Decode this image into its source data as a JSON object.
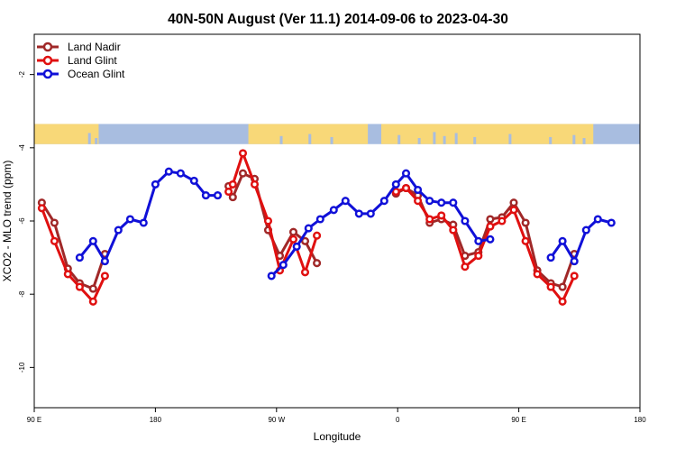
{
  "chart_data": {
    "type": "line",
    "title": "40N-50N August (Ver 11.1)   2014-09-06 to 2023-04-30",
    "xlabel": "Longitude",
    "ylabel": "XCO2 - MLO trend (ppm)",
    "xlim": [
      90,
      450
    ],
    "ylim": [
      -11.1,
      -0.9
    ],
    "x_ticks": [
      {
        "value": 90,
        "label": "90 E"
      },
      {
        "value": 162,
        "label": "180"
      },
      {
        "value": 234,
        "label": "90 W"
      },
      {
        "value": 306,
        "label": "0"
      },
      {
        "value": 378,
        "label": "90 E"
      },
      {
        "value": 450,
        "label": "180"
      }
    ],
    "y_ticks": [
      {
        "value": -2,
        "label": "-2"
      },
      {
        "value": -4,
        "label": "-4"
      },
      {
        "value": -6,
        "label": "-6"
      },
      {
        "value": -8,
        "label": "-8"
      },
      {
        "value": -10,
        "label": "-10"
      }
    ],
    "land_strip": {
      "y_range": [
        -3.35,
        -3.9
      ],
      "land_color": "#f8d878",
      "ocean_color": "#a8bde0"
    },
    "legend": {
      "position": "top-left"
    },
    "series": [
      {
        "name": "Land Nadir",
        "color": "#a02828",
        "segments": [
          [
            [
              94.5,
              -5.5
            ],
            [
              102,
              -6.05
            ],
            [
              110,
              -7.3
            ],
            [
              117,
              -7.7
            ],
            [
              125,
              -7.85
            ],
            [
              132,
              -6.9
            ]
          ],
          [
            [
              205.5,
              -5.05
            ],
            [
              208,
              -5.35
            ],
            [
              214,
              -4.7
            ],
            [
              221,
              -4.85
            ],
            [
              229,
              -6.25
            ],
            [
              236,
              -6.95
            ],
            [
              244,
              -6.3
            ],
            [
              251,
              -6.55
            ],
            [
              258,
              -7.15
            ]
          ],
          [
            [
              305,
              -5.25
            ],
            [
              311,
              -5.1
            ],
            [
              318,
              -5.3
            ],
            [
              325,
              -6.05
            ],
            [
              332,
              -5.95
            ],
            [
              339,
              -6.1
            ],
            [
              346,
              -6.95
            ],
            [
              354,
              -6.85
            ],
            [
              361,
              -5.95
            ],
            [
              368,
              -5.9
            ],
            [
              375,
              -5.5
            ],
            [
              382,
              -6.05
            ],
            [
              389,
              -7.35
            ],
            [
              397,
              -7.7
            ],
            [
              404,
              -7.8
            ],
            [
              411,
              -6.9
            ]
          ]
        ]
      },
      {
        "name": "Land Glint",
        "color": "#e01010",
        "segments": [
          [
            [
              94.5,
              -5.65
            ],
            [
              102,
              -6.55
            ],
            [
              110,
              -7.45
            ],
            [
              117,
              -7.8
            ],
            [
              125,
              -8.2
            ],
            [
              132,
              -7.5
            ]
          ],
          [
            [
              205.5,
              -5.2
            ],
            [
              208,
              -5.0
            ],
            [
              214,
              -4.15
            ],
            [
              221,
              -5.0
            ],
            [
              229,
              -6.0
            ],
            [
              236,
              -7.35
            ],
            [
              244,
              -6.5
            ],
            [
              251,
              -7.4
            ],
            [
              258,
              -6.4
            ]
          ],
          [
            [
              305,
              -5.2
            ],
            [
              311,
              -5.1
            ],
            [
              318,
              -5.45
            ],
            [
              325,
              -5.95
            ],
            [
              332,
              -5.85
            ],
            [
              339,
              -6.25
            ],
            [
              346,
              -7.25
            ],
            [
              354,
              -6.95
            ],
            [
              361,
              -6.15
            ],
            [
              368,
              -6.0
            ],
            [
              375,
              -5.7
            ],
            [
              382,
              -6.55
            ],
            [
              389,
              -7.45
            ],
            [
              397,
              -7.8
            ],
            [
              404,
              -8.2
            ],
            [
              411,
              -7.5
            ]
          ]
        ]
      },
      {
        "name": "Ocean Glint",
        "color": "#1010d8",
        "segments": [
          [
            [
              117,
              -7.0
            ],
            [
              125,
              -6.55
            ],
            [
              132,
              -7.1
            ],
            [
              140,
              -6.25
            ],
            [
              147,
              -5.95
            ],
            [
              155,
              -6.05
            ],
            [
              162,
              -5.0
            ],
            [
              170,
              -4.65
            ],
            [
              177,
              -4.7
            ],
            [
              185,
              -4.9
            ],
            [
              192,
              -5.3
            ],
            [
              199,
              -5.3
            ]
          ],
          [
            [
              231,
              -7.5
            ],
            [
              238,
              -7.2
            ],
            [
              246,
              -6.7
            ],
            [
              253,
              -6.2
            ],
            [
              260,
              -5.95
            ],
            [
              268,
              -5.7
            ],
            [
              275,
              -5.45
            ],
            [
              283,
              -5.8
            ],
            [
              290,
              -5.8
            ],
            [
              298,
              -5.45
            ],
            [
              305,
              -5.0
            ],
            [
              311,
              -4.7
            ],
            [
              318,
              -5.15
            ],
            [
              325,
              -5.45
            ],
            [
              332,
              -5.5
            ],
            [
              339,
              -5.5
            ],
            [
              346,
              -6.0
            ],
            [
              354,
              -6.55
            ],
            [
              361,
              -6.5
            ]
          ],
          [
            [
              397,
              -7.0
            ],
            [
              404,
              -6.55
            ],
            [
              411,
              -7.1
            ],
            [
              418,
              -6.25
            ],
            [
              425,
              -5.95
            ],
            [
              433,
              -6.05
            ]
          ]
        ]
      }
    ]
  }
}
